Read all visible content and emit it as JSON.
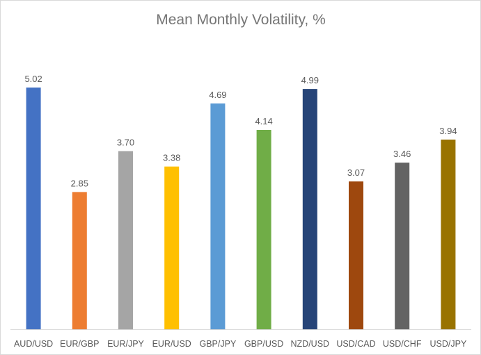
{
  "chart_data": {
    "type": "bar",
    "title": "Mean Monthly Volatility, %",
    "xlabel": "",
    "ylabel": "",
    "categories": [
      "AUD/USD",
      "EUR/GBP",
      "EUR/JPY",
      "EUR/USD",
      "GBP/JPY",
      "GBP/USD",
      "NZD/USD",
      "USD/CAD",
      "USD/CHF",
      "USD/JPY"
    ],
    "values": [
      5.02,
      2.85,
      3.7,
      3.38,
      4.69,
      4.14,
      4.99,
      3.07,
      3.46,
      3.94
    ],
    "value_labels": [
      "5.02",
      "2.85",
      "3.70",
      "3.38",
      "4.69",
      "4.14",
      "4.99",
      "3.07",
      "3.46",
      "3.94"
    ],
    "colors": [
      "#4472c4",
      "#ed7d31",
      "#a5a5a5",
      "#ffc000",
      "#5b9bd5",
      "#70ad47",
      "#264478",
      "#9e480e",
      "#636363",
      "#997300"
    ],
    "ylim": [
      0,
      5.02
    ],
    "grid": false,
    "legend": "none"
  }
}
